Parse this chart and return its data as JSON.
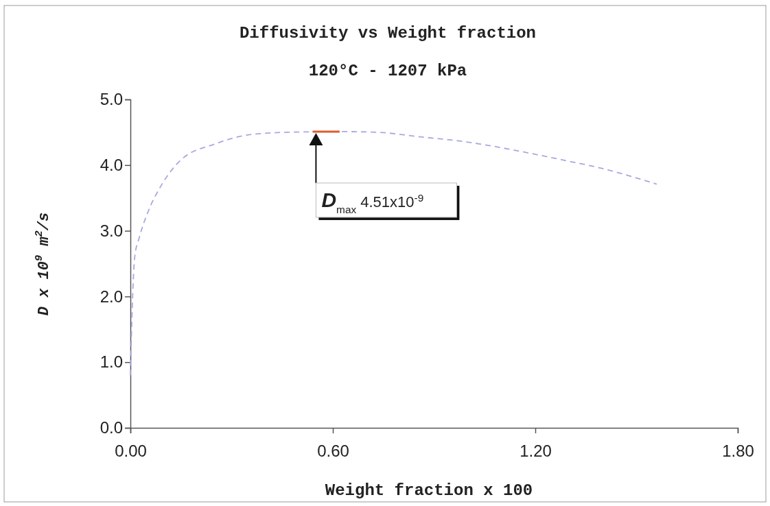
{
  "chart_data": {
    "type": "line",
    "title": "Diffusivity vs Weight fraction",
    "subtitle": "120°C - 1207 kPa",
    "xlabel": "Weight fraction x 100",
    "ylabel": "D x 10$^{9}$ m$^{2}$/s",
    "xlim": [
      0,
      1.8
    ],
    "xticks": [
      {
        "value": 0,
        "label": "0.00"
      },
      {
        "value": 0.6,
        "label": "0.60"
      },
      {
        "value": 1.2,
        "label": "1.20"
      },
      {
        "value": 1.8,
        "label": "1.80"
      }
    ],
    "ylim": [
      0,
      5
    ],
    "yticks": [
      {
        "value": 0,
        "label": "0.0"
      },
      {
        "value": 1,
        "label": "1.0"
      },
      {
        "value": 2,
        "label": "2.0"
      },
      {
        "value": 3,
        "label": "3.0"
      },
      {
        "value": 4,
        "label": "4.0"
      },
      {
        "value": 5,
        "label": "5.0"
      }
    ],
    "marker": "none",
    "series": [
      {
        "color": "#a8a8e0",
        "line_style": "dashed",
        "x": [
          0,
          0.006,
          0.013,
          0.026,
          0.054,
          0.088,
          0.15,
          0.25,
          0.35,
          0.466,
          0.58,
          0.625,
          0.73,
          0.86,
          1.0,
          1.135,
          1.27,
          1.405,
          1.56
        ],
        "values": [
          0.8,
          1.91,
          2.61,
          2.89,
          3.31,
          3.66,
          4.08,
          4.32,
          4.46,
          4.5,
          null,
          4.51,
          4.5,
          4.43,
          4.35,
          4.23,
          4.09,
          3.94,
          3.71
        ]
      },
      {
        "color": "#e05a30",
        "line_style": "solid",
        "x": [
          0.54,
          0.62
        ],
        "values": [
          4.51,
          4.51
        ]
      }
    ],
    "annotations": [
      {
        "text": "D$_{max}$ 4.51x10$^{-9}$",
        "x": 0.55,
        "y": 4.51
      }
    ]
  }
}
